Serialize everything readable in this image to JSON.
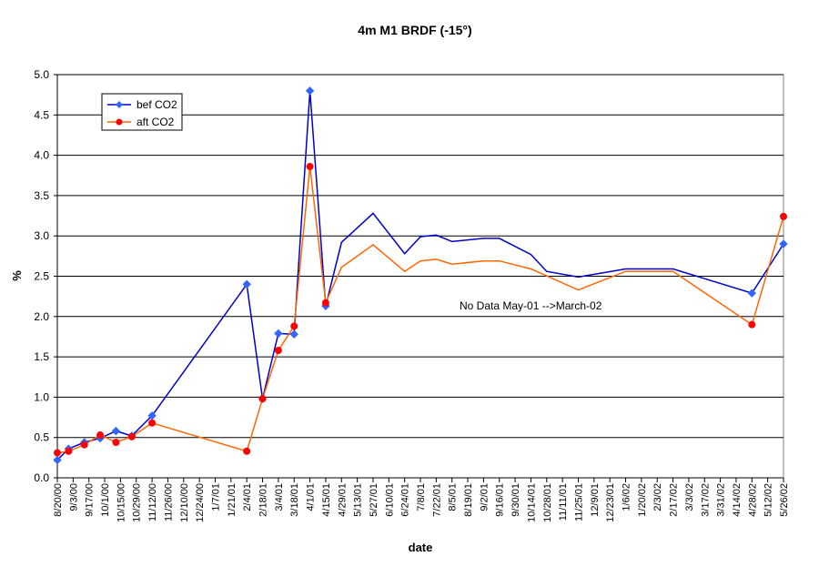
{
  "chart_data": {
    "type": "line",
    "title": "4m M1 BRDF (-15°)",
    "xlabel": "date",
    "ylabel": "%",
    "ylim": [
      0,
      5
    ],
    "yticks": [
      "0.0",
      "0.5",
      "1.0",
      "1.5",
      "2.0",
      "2.5",
      "3.0",
      "3.5",
      "4.0",
      "4.5",
      "5.0"
    ],
    "grid": "horizontal",
    "legend": "top-left",
    "xticks": [
      "8/20/00",
      "9/3/00",
      "9/17/00",
      "10/1/00",
      "10/15/00",
      "10/29/00",
      "11/12/00",
      "11/26/00",
      "12/10/00",
      "12/24/00",
      "1/7/01",
      "1/21/01",
      "2/4/01",
      "2/18/01",
      "3/4/01",
      "3/18/01",
      "4/1/01",
      "4/15/01",
      "4/29/01",
      "5/13/01",
      "5/27/01",
      "6/10/01",
      "6/24/01",
      "7/8/01",
      "7/22/01",
      "8/5/01",
      "8/19/01",
      "9/2/01",
      "9/16/01",
      "9/30/01",
      "10/14/01",
      "10/28/01",
      "11/11/01",
      "11/25/01",
      "12/9/01",
      "12/23/01",
      "1/6/02",
      "1/20/02",
      "2/3/02",
      "2/17/02",
      "3/3/02",
      "3/17/02",
      "3/31/02",
      "4/14/02",
      "4/28/02",
      "5/12/02",
      "5/26/02"
    ],
    "annotation": "No Data May-01 -->March-02",
    "series": [
      {
        "name": "bef CO2",
        "color": "#0000cc",
        "marker": "diamond",
        "marker_color": "#3366ff",
        "points": [
          [
            "8/20/00",
            0.22
          ],
          [
            "8/30/00",
            0.36
          ],
          [
            "9/13/00",
            0.44
          ],
          [
            "9/27/00",
            0.49
          ],
          [
            "10/11/00",
            0.58
          ],
          [
            "10/25/00",
            0.52
          ],
          [
            "11/12/00",
            0.77
          ],
          [
            "2/4/01",
            2.4
          ],
          [
            "2/18/01",
            0.98
          ],
          [
            "3/4/01",
            1.79
          ],
          [
            "3/18/01",
            1.78
          ],
          [
            "4/1/01",
            4.8
          ],
          [
            "4/15/01",
            2.13
          ],
          [
            "4/29/01",
            2.92
          ],
          [
            "5/27/01",
            3.28
          ],
          [
            "6/24/01",
            2.78
          ],
          [
            "7/8/01",
            2.99
          ],
          [
            "7/22/01",
            3.01
          ],
          [
            "8/5/01",
            2.93
          ],
          [
            "9/2/01",
            2.97
          ],
          [
            "9/16/01",
            2.97
          ],
          [
            "10/14/01",
            2.77
          ],
          [
            "10/28/01",
            2.56
          ],
          [
            "11/25/01",
            2.49
          ],
          [
            "1/6/02",
            2.59
          ],
          [
            "2/17/02",
            2.59
          ],
          [
            "4/28/02",
            2.29
          ],
          [
            "5/26/02",
            2.9
          ]
        ]
      },
      {
        "name": "aft CO2",
        "color": "#ff6600",
        "marker": "circle",
        "marker_color": "#ff0000",
        "points": [
          [
            "8/20/00",
            0.31
          ],
          [
            "8/30/00",
            0.33
          ],
          [
            "9/13/00",
            0.41
          ],
          [
            "9/27/00",
            0.53
          ],
          [
            "10/11/00",
            0.44
          ],
          [
            "10/25/00",
            0.51
          ],
          [
            "11/12/00",
            0.68
          ],
          [
            "2/4/01",
            0.33
          ],
          [
            "2/18/01",
            0.98
          ],
          [
            "3/4/01",
            1.58
          ],
          [
            "3/18/01",
            1.88
          ],
          [
            "4/1/01",
            3.86
          ],
          [
            "4/15/01",
            2.17
          ],
          [
            "4/29/01",
            2.61
          ],
          [
            "5/27/01",
            2.89
          ],
          [
            "6/24/01",
            2.56
          ],
          [
            "7/8/01",
            2.69
          ],
          [
            "7/22/01",
            2.71
          ],
          [
            "8/5/01",
            2.65
          ],
          [
            "9/2/01",
            2.69
          ],
          [
            "9/16/01",
            2.69
          ],
          [
            "10/14/01",
            2.59
          ],
          [
            "11/25/01",
            2.33
          ],
          [
            "1/6/02",
            2.56
          ],
          [
            "2/17/02",
            2.56
          ],
          [
            "4/28/02",
            1.9
          ],
          [
            "5/26/02",
            3.24
          ]
        ]
      }
    ],
    "marked_dates": [
      "8/20/00",
      "8/30/00",
      "9/13/00",
      "9/27/00",
      "10/11/00",
      "10/25/00",
      "11/12/00",
      "2/4/01",
      "2/18/01",
      "3/4/01",
      "3/18/01",
      "4/1/01",
      "4/15/01",
      "4/28/02",
      "5/26/02"
    ]
  }
}
